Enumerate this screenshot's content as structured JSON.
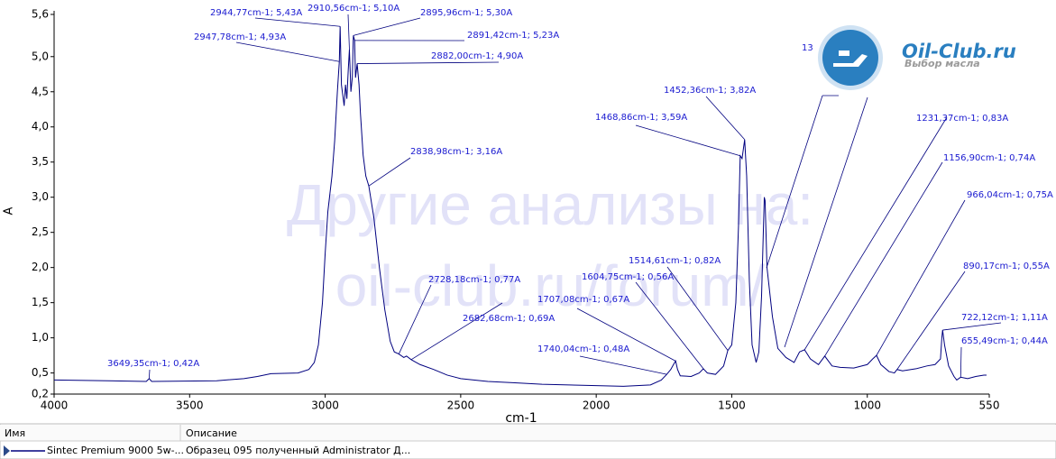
{
  "chart_data": {
    "type": "line",
    "x_label": "cm-1",
    "y_label": "A",
    "xlim": [
      4000,
      550
    ],
    "ylim": [
      0.2,
      5.6
    ],
    "xticks": [
      4000,
      3500,
      3000,
      2500,
      2000,
      1500,
      1000,
      550
    ],
    "yticks": [
      {
        "value": 0.2,
        "label": "0,2"
      },
      {
        "value": 0.5,
        "label": "0,5"
      },
      {
        "value": 1.0,
        "label": "1,0"
      },
      {
        "value": 1.5,
        "label": "1,5"
      },
      {
        "value": 2.0,
        "label": "2,0"
      },
      {
        "value": 2.5,
        "label": "2,5"
      },
      {
        "value": 3.0,
        "label": "3,0"
      },
      {
        "value": 3.5,
        "label": "3,5"
      },
      {
        "value": 4.0,
        "label": "4,0"
      },
      {
        "value": 4.5,
        "label": "4,5"
      },
      {
        "value": 5.0,
        "label": "5,0"
      },
      {
        "value": 5.6,
        "label": "5,6"
      }
    ],
    "series": [
      {
        "name": "Sintec Premium 9000 5w-...",
        "description": "Образец 095 полученный Administrator Д...",
        "color": "#00007f",
        "x": [
          4000,
          3800,
          3660,
          3649.35,
          3640,
          3400,
          3300,
          3250,
          3200,
          3100,
          3060,
          3040,
          3025,
          3010,
          3000,
          2990,
          2975,
          2965,
          2955,
          2950,
          2947.78,
          2944.77,
          2940,
          2930,
          2925,
          2920,
          2915,
          2910.56,
          2905,
          2900,
          2895.96,
          2891.42,
          2888,
          2882.0,
          2875,
          2870,
          2860,
          2850,
          2838.98,
          2820,
          2800,
          2780,
          2760,
          2745,
          2728.18,
          2710,
          2700,
          2682.68,
          2650,
          2600,
          2550,
          2500,
          2400,
          2300,
          2200,
          2100,
          2000,
          1900,
          1800,
          1760,
          1740.04,
          1725,
          1715,
          1707.08,
          1700,
          1690,
          1650,
          1620,
          1604.75,
          1590,
          1560,
          1530,
          1514.61,
          1500,
          1485,
          1475,
          1468.86,
          1462,
          1452.36,
          1445,
          1435,
          1425,
          1410,
          1400,
          1390,
          1380,
          1377,
          1370,
          1350,
          1330,
          1300,
          1270,
          1250,
          1231.37,
          1210,
          1180,
          1156.9,
          1130,
          1100,
          1050,
          1000,
          980,
          966.04,
          950,
          920,
          900,
          890.17,
          870,
          820,
          780,
          750,
          730,
          725,
          722.12,
          715,
          700,
          680,
          670,
          655.49,
          630,
          600,
          570,
          560
        ],
        "values": [
          0.4,
          0.39,
          0.38,
          0.42,
          0.38,
          0.39,
          0.42,
          0.45,
          0.49,
          0.5,
          0.55,
          0.65,
          0.9,
          1.5,
          2.2,
          2.8,
          3.3,
          3.8,
          4.5,
          4.8,
          4.93,
          5.43,
          4.6,
          4.3,
          4.6,
          4.4,
          4.8,
          5.1,
          4.5,
          4.7,
          5.3,
          5.23,
          4.7,
          4.9,
          4.6,
          4.2,
          3.6,
          3.3,
          3.16,
          2.7,
          2.0,
          1.4,
          0.95,
          0.8,
          0.77,
          0.72,
          0.74,
          0.69,
          0.62,
          0.55,
          0.47,
          0.42,
          0.38,
          0.36,
          0.34,
          0.33,
          0.32,
          0.31,
          0.33,
          0.4,
          0.48,
          0.55,
          0.62,
          0.67,
          0.55,
          0.46,
          0.45,
          0.5,
          0.56,
          0.5,
          0.48,
          0.6,
          0.82,
          0.9,
          1.5,
          2.6,
          3.59,
          3.55,
          3.82,
          3.3,
          1.8,
          0.9,
          0.65,
          0.8,
          1.6,
          3.0,
          2.95,
          2.0,
          1.3,
          0.85,
          0.72,
          0.65,
          0.8,
          0.83,
          0.7,
          0.62,
          0.74,
          0.6,
          0.58,
          0.57,
          0.62,
          0.7,
          0.75,
          0.62,
          0.52,
          0.5,
          0.55,
          0.53,
          0.56,
          0.6,
          0.62,
          0.7,
          1.0,
          1.11,
          0.9,
          0.6,
          0.45,
          0.4,
          0.44,
          0.42,
          0.45,
          0.47,
          0.47
        ]
      }
    ],
    "annotations": [
      {
        "x": 2944.77,
        "y": 5.43,
        "label": "2944,77cm-1; 5,43A"
      },
      {
        "x": 2910.56,
        "y": 5.1,
        "label": "2910,56cm-1; 5,10A"
      },
      {
        "x": 2895.96,
        "y": 5.3,
        "label": "2895,96cm-1; 5,30A"
      },
      {
        "x": 2947.78,
        "y": 4.93,
        "label": "2947,78cm-1; 4,93A"
      },
      {
        "x": 2891.42,
        "y": 5.23,
        "label": "2891,42cm-1; 5,23A"
      },
      {
        "x": 2882.0,
        "y": 4.9,
        "label": "2882,00cm-1; 4,90A"
      },
      {
        "x": 2838.98,
        "y": 3.16,
        "label": "2838,98cm-1; 3,16A"
      },
      {
        "x": 2728.18,
        "y": 0.77,
        "label": "2728,18cm-1; 0,77A"
      },
      {
        "x": 2682.68,
        "y": 0.69,
        "label": "2682,68cm-1; 0,69A"
      },
      {
        "x": 1740.04,
        "y": 0.48,
        "label": "1740,04cm-1; 0,48A"
      },
      {
        "x": 1707.08,
        "y": 0.67,
        "label": "1707,08cm-1; 0,67A"
      },
      {
        "x": 1604.75,
        "y": 0.56,
        "label": "1604,75cm-1; 0,56A"
      },
      {
        "x": 1514.61,
        "y": 0.82,
        "label": "1514,61cm-1; 0,82A"
      },
      {
        "x": 1468.86,
        "y": 3.59,
        "label": "1468,86cm-1; 3,59A"
      },
      {
        "x": 1452.36,
        "y": 3.82,
        "label": "1452,36cm-1; 3,82A"
      },
      {
        "x": 1231.37,
        "y": 0.83,
        "label": "1231,37cm-1; 0,83A"
      },
      {
        "x": 1156.9,
        "y": 0.74,
        "label": "1156,90cm-1; 0,74A"
      },
      {
        "x": 966.04,
        "y": 0.75,
        "label": "966,04cm-1; 0,75A"
      },
      {
        "x": 890.17,
        "y": 0.55,
        "label": "890,17cm-1; 0,55A"
      },
      {
        "x": 722.12,
        "y": 1.11,
        "label": "722,12cm-1; 1,11A"
      },
      {
        "x": 655.49,
        "y": 0.44,
        "label": "655,49cm-1; 0,44A"
      },
      {
        "x": 3649.35,
        "y": 0.42,
        "label": "3649,35cm-1; 0,42A"
      }
    ],
    "partial_label": "13",
    "watermark": [
      "Другие анализы на:",
      "oil-club.ru/forum/"
    ],
    "logo": {
      "name": "Oil-Club.ru",
      "tagline": "Выбор масла"
    },
    "legend_headers": [
      "Имя",
      "Описание"
    ]
  }
}
